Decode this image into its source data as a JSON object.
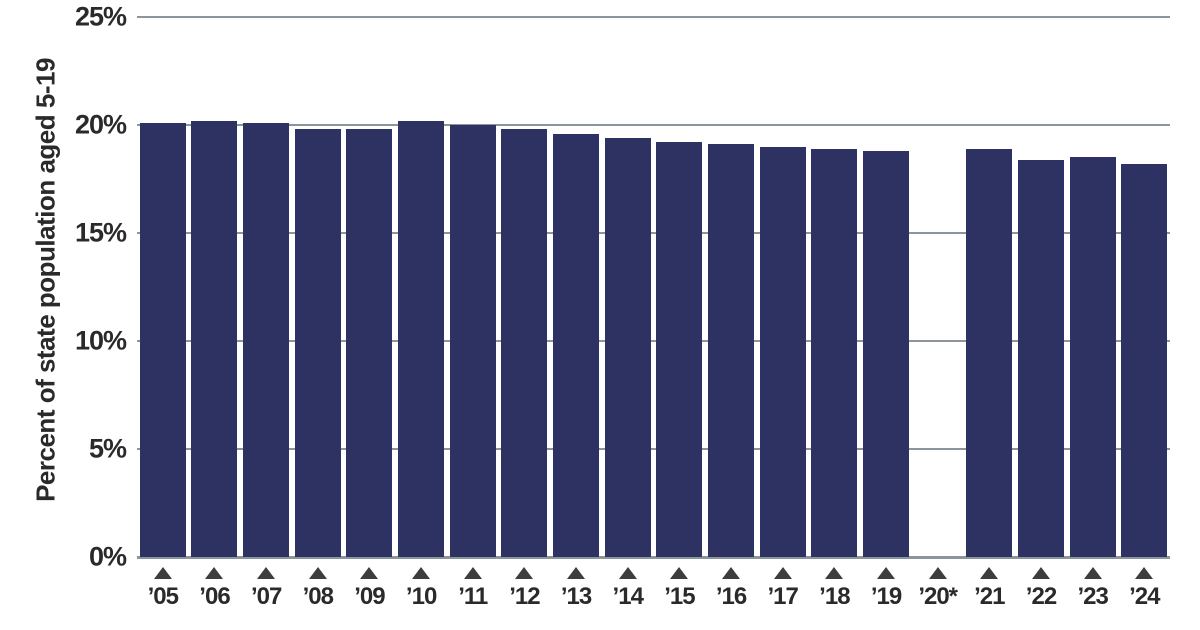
{
  "colors": {
    "bar": "#2e3263",
    "gridline": "#8c959b",
    "text": "#2a2a2a",
    "marker": "#3d3d3d",
    "background": "#ffffff"
  },
  "chart_data": {
    "type": "bar",
    "title": "",
    "xlabel": "",
    "ylabel": "Percent of state population aged 5-19",
    "ylim": [
      0,
      25
    ],
    "yticks": [
      0,
      5,
      10,
      15,
      20,
      25
    ],
    "ytick_labels": [
      "0%",
      "5%",
      "10%",
      "15%",
      "20%",
      "25%"
    ],
    "grid": true,
    "legend": false,
    "x_marker": "triangle",
    "categories": [
      "’05",
      "’06",
      "’07",
      "’08",
      "’09",
      "’10",
      "’11",
      "’12",
      "’13",
      "’14",
      "’15",
      "’16",
      "’17",
      "’18",
      "’19",
      "’20*",
      "’21",
      "’22",
      "’23",
      "’24"
    ],
    "values": [
      20.1,
      20.2,
      20.1,
      19.8,
      19.8,
      20.2,
      20.0,
      19.8,
      19.6,
      19.4,
      19.2,
      19.1,
      19.0,
      18.9,
      18.8,
      null,
      18.9,
      18.4,
      18.5,
      18.2
    ]
  }
}
